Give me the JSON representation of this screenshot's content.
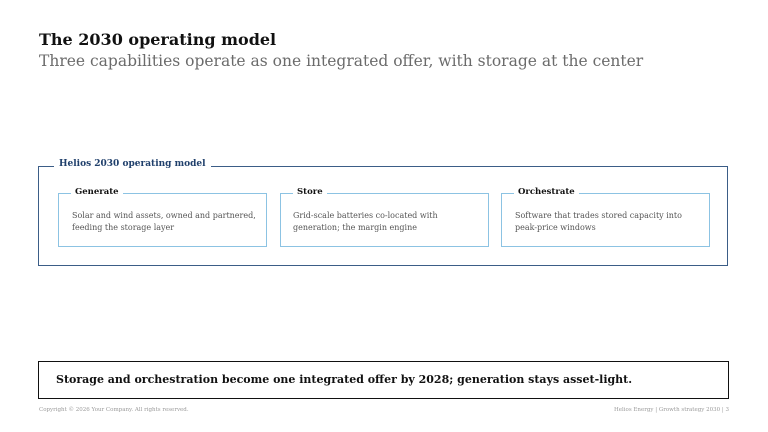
{
  "slide": {
    "title": "The 2030 operating model",
    "subtitle": "Three capabilities operate as one integrated offer, with storage at the center"
  },
  "model": {
    "label": "Helios 2030 operating model",
    "capabilities": [
      {
        "title": "Generate",
        "body": "Solar and wind assets, owned and partnered, feeding the storage layer"
      },
      {
        "title": "Store",
        "body": "Grid-scale batteries co-located with generation; the margin engine"
      },
      {
        "title": "Orchestrate",
        "body": "Software that trades stored capacity into peak-price windows"
      }
    ]
  },
  "takeaway": "Storage and orchestration become one integrated offer by 2028; generation stays asset-light.",
  "footer": {
    "left": "Copyright © 2026 Your Company. All rights reserved.",
    "right": "Helios Energy  |  Growth strategy 2030  |  3"
  },
  "colors": {
    "frame": "#3b5d87",
    "frame_label": "#1f3f6b",
    "card_border": "#8cc3e3"
  }
}
